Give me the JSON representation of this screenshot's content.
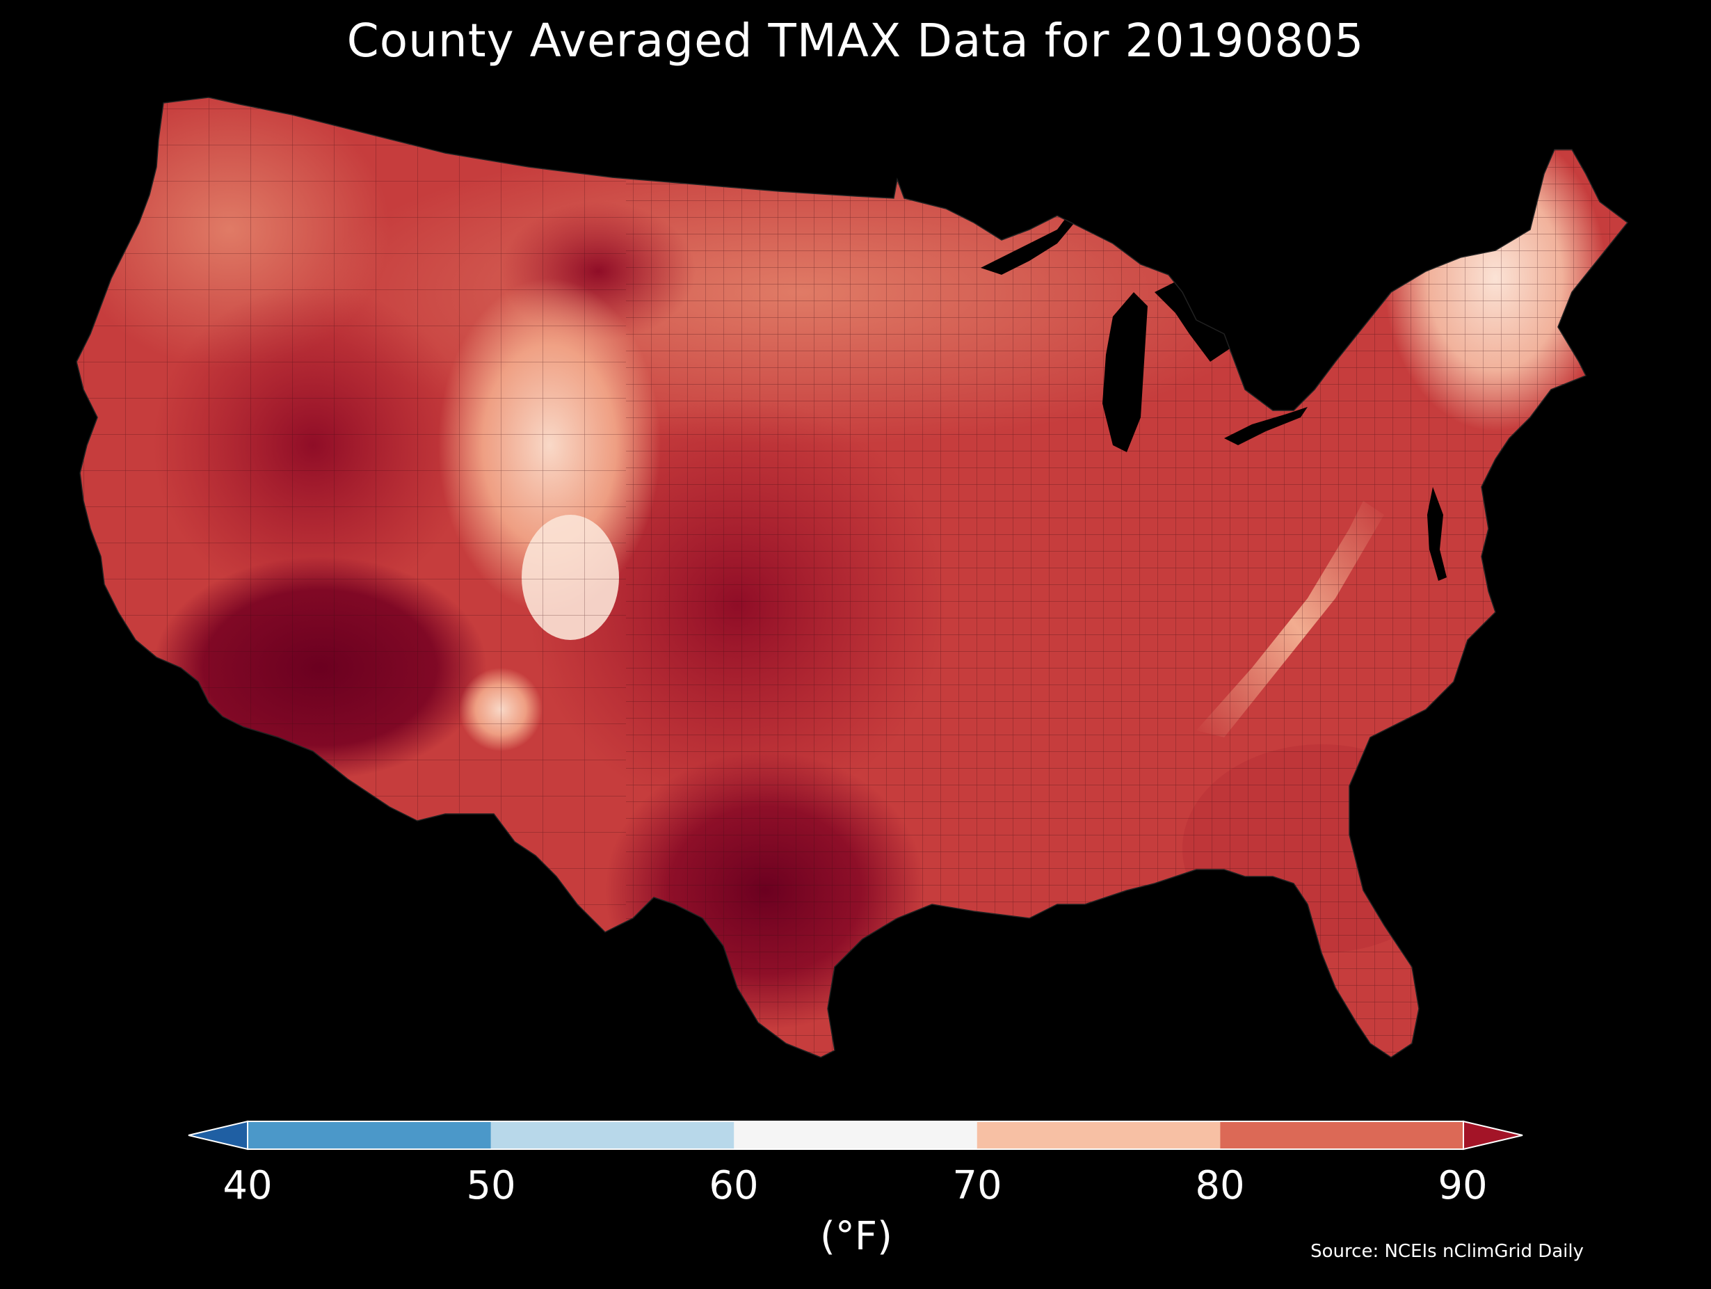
{
  "title": "County Averaged TMAX Data for 20190805",
  "colorbar": {
    "label": "(°F)",
    "ticks": [
      "40",
      "50",
      "60",
      "70",
      "80",
      "90"
    ],
    "bins": [
      {
        "range": "<40",
        "color": "#1f5fa3"
      },
      {
        "range": "40-50",
        "color": "#4b98c9"
      },
      {
        "range": "50-60",
        "color": "#b8d8ea"
      },
      {
        "range": "60-70",
        "color": "#f5f5f5"
      },
      {
        "range": "70-80",
        "color": "#f7c0a4"
      },
      {
        "range": "80-90",
        "color": "#dc6956"
      },
      {
        "range": ">90",
        "color": "#a31427"
      }
    ]
  },
  "source": "Source: NCEIs nClimGrid Daily",
  "map": {
    "background": "#000000",
    "land_base_color": "#c63d3d",
    "regions": [
      {
        "name": "desert-southwest",
        "color": "#6b0020"
      },
      {
        "name": "texas",
        "color": "#8a0a25"
      },
      {
        "name": "great-plains",
        "color": "#a31427"
      },
      {
        "name": "midwest-east",
        "color": "#cf4a45"
      },
      {
        "name": "northern-tier",
        "color": "#dc6956"
      },
      {
        "name": "rockies",
        "color": "#f3a98a"
      },
      {
        "name": "appalachians",
        "color": "#f3a98a"
      },
      {
        "name": "colorado-high-peaks",
        "color": "#fbe3d6"
      },
      {
        "name": "new-england",
        "color": "#f7c7b0"
      },
      {
        "name": "florida-southeast",
        "color": "#c83a3e"
      }
    ]
  }
}
